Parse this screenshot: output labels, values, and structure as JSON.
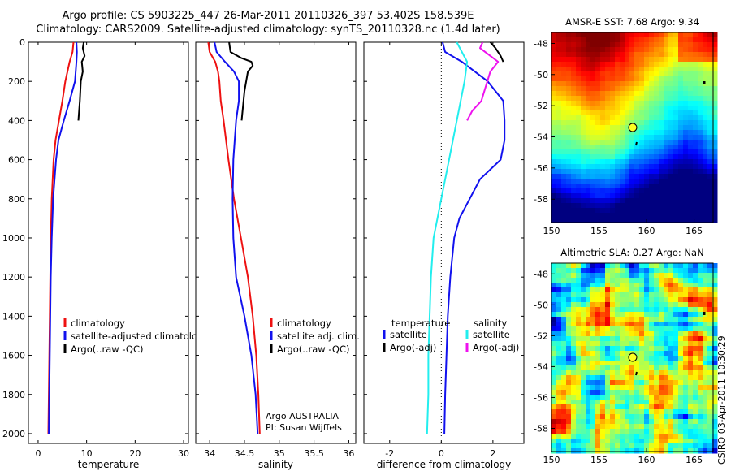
{
  "header": {
    "line1": "Argo profile: CS 5903225_447 26-Mar-2011 20110326_397 53.402S 158.539E",
    "line2": "Climatology: CARS2009. Satellite-adjusted climatology: synTS_20110328.nc (1.4d later)"
  },
  "side_label": "CSIRO 03-Apr-2011 10:30:29",
  "colors": {
    "red": "#ee1111",
    "blue": "#1111ee",
    "black": "#000000",
    "cyan": "#22eeee",
    "magenta": "#ee11ee"
  },
  "chart_data": [
    {
      "id": "temperature",
      "type": "line",
      "xlabel": "temperature",
      "xlim": [
        -2,
        31
      ],
      "ylim": [
        0,
        2050
      ],
      "y_reversed": true,
      "xticks": [
        0,
        10,
        20,
        30
      ],
      "yticks": [
        0,
        200,
        400,
        600,
        800,
        1000,
        1200,
        1400,
        1600,
        1800,
        2000
      ],
      "legend": {
        "position": "lower-right",
        "entries": [
          "climatology",
          "satellite-adjusted climatology",
          "Argo(..raw -QC)"
        ]
      },
      "series": [
        {
          "name": "climatology",
          "color": "red",
          "points": [
            [
              7.3,
              0
            ],
            [
              7.1,
              50
            ],
            [
              6.5,
              100
            ],
            [
              5.6,
              200
            ],
            [
              5.0,
              300
            ],
            [
              4.3,
              400
            ],
            [
              3.6,
              500
            ],
            [
              3.2,
              600
            ],
            [
              2.8,
              800
            ],
            [
              2.6,
              1000
            ],
            [
              2.5,
              1200
            ],
            [
              2.4,
              1400
            ],
            [
              2.3,
              1600
            ],
            [
              2.2,
              1800
            ],
            [
              2.1,
              2000
            ]
          ]
        },
        {
          "name": "satellite-adjusted climatology",
          "color": "blue",
          "points": [
            [
              7.9,
              0
            ],
            [
              8.0,
              50
            ],
            [
              7.9,
              100
            ],
            [
              7.6,
              200
            ],
            [
              6.5,
              300
            ],
            [
              5.3,
              400
            ],
            [
              4.2,
              500
            ],
            [
              3.7,
              600
            ],
            [
              3.1,
              800
            ],
            [
              2.8,
              1000
            ],
            [
              2.6,
              1200
            ],
            [
              2.5,
              1400
            ],
            [
              2.4,
              1600
            ],
            [
              2.3,
              1800
            ],
            [
              2.2,
              2000
            ]
          ]
        },
        {
          "name": "Argo(..raw -QC)",
          "color": "black",
          "points": [
            [
              9.4,
              0
            ],
            [
              9.2,
              30
            ],
            [
              9.6,
              70
            ],
            [
              9.0,
              100
            ],
            [
              9.2,
              150
            ],
            [
              8.8,
              200
            ],
            [
              8.6,
              300
            ],
            [
              8.3,
              400
            ]
          ]
        }
      ]
    },
    {
      "id": "salinity",
      "type": "line",
      "xlabel": "salinity",
      "xlim": [
        33.8,
        36.1
      ],
      "ylim": [
        0,
        2050
      ],
      "y_reversed": true,
      "xticks": [
        34,
        34.5,
        35,
        35.5,
        36
      ],
      "legend": {
        "position": "lower-right",
        "entries": [
          "climatology",
          "satellite adj. clim.",
          "Argo(..raw -QC)"
        ]
      },
      "annotations": [
        "Argo AUSTRALIA",
        "PI: Susan Wijffels"
      ],
      "series": [
        {
          "name": "climatology",
          "color": "red",
          "points": [
            [
              33.98,
              0
            ],
            [
              34.0,
              50
            ],
            [
              34.08,
              100
            ],
            [
              34.12,
              150
            ],
            [
              34.14,
              200
            ],
            [
              34.16,
              300
            ],
            [
              34.2,
              400
            ],
            [
              34.27,
              600
            ],
            [
              34.35,
              800
            ],
            [
              34.45,
              1000
            ],
            [
              34.55,
              1200
            ],
            [
              34.62,
              1400
            ],
            [
              34.67,
              1600
            ],
            [
              34.7,
              1800
            ],
            [
              34.72,
              2000
            ]
          ]
        },
        {
          "name": "satellite adj. clim.",
          "color": "blue",
          "points": [
            [
              34.07,
              0
            ],
            [
              34.1,
              50
            ],
            [
              34.22,
              100
            ],
            [
              34.35,
              150
            ],
            [
              34.42,
              200
            ],
            [
              34.42,
              300
            ],
            [
              34.38,
              400
            ],
            [
              34.34,
              600
            ],
            [
              34.33,
              800
            ],
            [
              34.34,
              1000
            ],
            [
              34.38,
              1200
            ],
            [
              34.5,
              1400
            ],
            [
              34.6,
              1600
            ],
            [
              34.66,
              1800
            ],
            [
              34.69,
              2000
            ]
          ]
        },
        {
          "name": "Argo(..raw -QC)",
          "color": "black",
          "points": [
            [
              34.28,
              0
            ],
            [
              34.3,
              50
            ],
            [
              34.45,
              80
            ],
            [
              34.6,
              100
            ],
            [
              34.62,
              120
            ],
            [
              34.55,
              150
            ],
            [
              34.5,
              250
            ],
            [
              34.46,
              400
            ]
          ]
        }
      ]
    },
    {
      "id": "difference",
      "type": "line",
      "xlabel": "difference from climatology",
      "xlim": [
        -3,
        3.2
      ],
      "ylim": [
        0,
        2050
      ],
      "y_reversed": true,
      "xticks": [
        -2,
        0,
        2
      ],
      "zero_line": true,
      "legend": {
        "position": "lower-center",
        "temperature_title": "temperature",
        "salinity_title": "salinity",
        "temperature_entries": [
          "satellite",
          "Argo(-adj)"
        ],
        "salinity_entries": [
          "satellite",
          "Argo(-adj)"
        ]
      },
      "series": [
        {
          "name": "temperature satellite",
          "color": "blue",
          "points": [
            [
              0.05,
              0
            ],
            [
              0.15,
              50
            ],
            [
              0.8,
              100
            ],
            [
              1.8,
              200
            ],
            [
              2.4,
              300
            ],
            [
              2.45,
              400
            ],
            [
              2.45,
              500
            ],
            [
              2.3,
              600
            ],
            [
              1.5,
              700
            ],
            [
              1.1,
              800
            ],
            [
              0.7,
              900
            ],
            [
              0.5,
              1000
            ],
            [
              0.35,
              1200
            ],
            [
              0.25,
              1400
            ],
            [
              0.2,
              1600
            ],
            [
              0.15,
              1800
            ],
            [
              0.12,
              2000
            ]
          ]
        },
        {
          "name": "Argo(-adj) temperature",
          "color": "black",
          "points": [
            [
              1.9,
              0
            ],
            [
              2.1,
              30
            ],
            [
              2.3,
              70
            ],
            [
              2.4,
              100
            ]
          ]
        },
        {
          "name": "salinity satellite",
          "color": "cyan",
          "points": [
            [
              0.6,
              0
            ],
            [
              0.8,
              50
            ],
            [
              1.0,
              100
            ],
            [
              0.9,
              200
            ],
            [
              0.6,
              400
            ],
            [
              0.3,
              600
            ],
            [
              0.0,
              800
            ],
            [
              -0.3,
              1000
            ],
            [
              -0.4,
              1200
            ],
            [
              -0.45,
              1400
            ],
            [
              -0.5,
              1600
            ],
            [
              -0.5,
              1800
            ],
            [
              -0.55,
              2000
            ]
          ]
        },
        {
          "name": "Argo(-adj) salinity",
          "color": "magenta",
          "points": [
            [
              1.6,
              0
            ],
            [
              1.5,
              30
            ],
            [
              2.2,
              100
            ],
            [
              1.9,
              150
            ],
            [
              1.55,
              300
            ],
            [
              1.2,
              350
            ],
            [
              1.0,
              400
            ]
          ]
        }
      ]
    }
  ],
  "maps": [
    {
      "id": "sst-map",
      "title": "AMSR-E SST: 7.68 Argo: 9.34",
      "xlim": [
        150,
        167
      ],
      "ylim": [
        -59.5,
        -47.3
      ],
      "xticks": [
        150,
        155,
        160,
        165
      ],
      "yticks": [
        -48,
        -50,
        -52,
        -54,
        -56,
        -58
      ],
      "float": {
        "lon": 158.54,
        "lat": -53.4
      },
      "marker_fill": "#ffff22"
    },
    {
      "id": "sla-map",
      "title": "Altimetric SLA: 0.27 Argo: NaN",
      "xlim": [
        150,
        167
      ],
      "ylim": [
        -59.5,
        -47.3
      ],
      "xticks": [
        150,
        155,
        160,
        165
      ],
      "yticks": [
        -48,
        -50,
        -52,
        -54,
        -56,
        -58
      ],
      "float": {
        "lon": 158.54,
        "lat": -53.4
      },
      "marker_fill": "#ffff22"
    }
  ]
}
